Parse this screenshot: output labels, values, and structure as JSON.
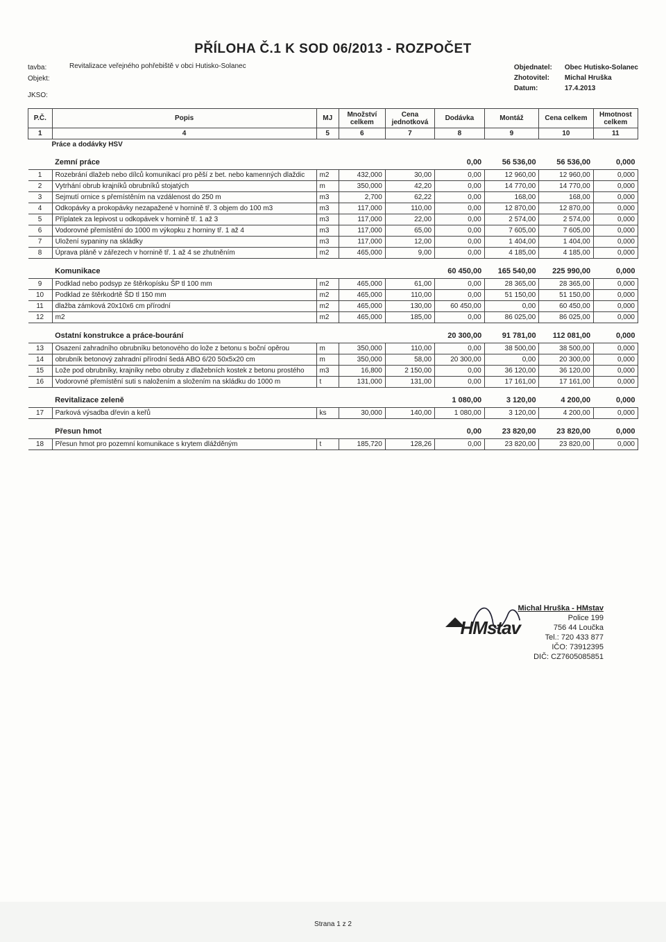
{
  "title": "PŘÍLOHA Č.1 K SOD 06/2013 - ROZPOČET",
  "labels": {
    "stavba": "tavba:",
    "objekt": "Objekt:",
    "jkso": "JKSO:"
  },
  "stavba_text": "Revitalizace veřejného pohřebiště v obci Hutisko-Solanec",
  "meta": {
    "objednatel_lbl": "Objednatel:",
    "objednatel": "Obec Hutisko-Solanec",
    "zhotovitel_lbl": "Zhotovitel:",
    "zhotovitel": "Michal Hruška",
    "datum_lbl": "Datum:",
    "datum": "17.4.2013"
  },
  "columns": {
    "pc": "P.Č.",
    "popis": "Popis",
    "mj": "MJ",
    "mnoz": "Množství celkem",
    "cj": "Cena jednotková",
    "dod": "Dodávka",
    "mont": "Montáž",
    "cena": "Cena celkem",
    "hm": "Hmotnost celkem"
  },
  "colnums": [
    "1",
    "4",
    "5",
    "6",
    "7",
    "8",
    "9",
    "10",
    "11"
  ],
  "bigsection": "Práce a dodávky HSV",
  "sections": [
    {
      "name": "Zemní práce",
      "sums": {
        "dod": "0,00",
        "mont": "56 536,00",
        "cena": "56 536,00",
        "hm": "0,000"
      },
      "rows": [
        {
          "pc": "1",
          "popis": "Rozebrání dlažeb nebo dílců komunikací pro pěší z bet. nebo kamenných dlaždic",
          "mj": "m2",
          "mnoz": "432,000",
          "cj": "30,00",
          "dod": "0,00",
          "mont": "12 960,00",
          "cena": "12 960,00",
          "hm": "0,000"
        },
        {
          "pc": "2",
          "popis": "Vytrhání obrub krajníků obrubníků stojatých",
          "mj": "m",
          "mnoz": "350,000",
          "cj": "42,20",
          "dod": "0,00",
          "mont": "14 770,00",
          "cena": "14 770,00",
          "hm": "0,000"
        },
        {
          "pc": "3",
          "popis": "Sejmutí ornice s přemístěním na vzdálenost do 250 m",
          "mj": "m3",
          "mnoz": "2,700",
          "cj": "62,22",
          "dod": "0,00",
          "mont": "168,00",
          "cena": "168,00",
          "hm": "0,000"
        },
        {
          "pc": "4",
          "popis": "Odkopávky a prokopávky nezapažené v hornině tř. 3 objem do 100 m3",
          "mj": "m3",
          "mnoz": "117,000",
          "cj": "110,00",
          "dod": "0,00",
          "mont": "12 870,00",
          "cena": "12 870,00",
          "hm": "0,000"
        },
        {
          "pc": "5",
          "popis": "Příplatek za lepivost u odkopávek v hornině tř. 1 až 3",
          "mj": "m3",
          "mnoz": "117,000",
          "cj": "22,00",
          "dod": "0,00",
          "mont": "2 574,00",
          "cena": "2 574,00",
          "hm": "0,000"
        },
        {
          "pc": "6",
          "popis": "Vodorovné přemístění do 1000 m výkopku z horniny tř. 1 až 4",
          "mj": "m3",
          "mnoz": "117,000",
          "cj": "65,00",
          "dod": "0,00",
          "mont": "7 605,00",
          "cena": "7 605,00",
          "hm": "0,000"
        },
        {
          "pc": "7",
          "popis": "Uložení sypaniny na skládky",
          "mj": "m3",
          "mnoz": "117,000",
          "cj": "12,00",
          "dod": "0,00",
          "mont": "1 404,00",
          "cena": "1 404,00",
          "hm": "0,000"
        },
        {
          "pc": "8",
          "popis": "Úprava pláně v zářezech v hornině tř. 1 až 4 se zhutněním",
          "mj": "m2",
          "mnoz": "465,000",
          "cj": "9,00",
          "dod": "0,00",
          "mont": "4 185,00",
          "cena": "4 185,00",
          "hm": "0,000"
        }
      ]
    },
    {
      "name": "Komunikace",
      "sums": {
        "dod": "60 450,00",
        "mont": "165 540,00",
        "cena": "225 990,00",
        "hm": "0,000"
      },
      "rows": [
        {
          "pc": "9",
          "popis": "Podklad nebo podsyp ze štěrkopísku ŠP tl 100 mm",
          "mj": "m2",
          "mnoz": "465,000",
          "cj": "61,00",
          "dod": "0,00",
          "mont": "28 365,00",
          "cena": "28 365,00",
          "hm": "0,000"
        },
        {
          "pc": "10",
          "popis": "Podklad ze štěrkodrtě ŠD tl 150 mm",
          "mj": "m2",
          "mnoz": "465,000",
          "cj": "110,00",
          "dod": "0,00",
          "mont": "51 150,00",
          "cena": "51 150,00",
          "hm": "0,000"
        },
        {
          "pc": "11",
          "popis": "dlažba zámková 20x10x6 cm přírodní",
          "mj": "m2",
          "mnoz": "465,000",
          "cj": "130,00",
          "dod": "60 450,00",
          "mont": "0,00",
          "cena": "60 450,00",
          "hm": "0,000"
        },
        {
          "pc": "12",
          "popis": "m2",
          "mj": "m2",
          "mnoz": "465,000",
          "cj": "185,00",
          "dod": "0,00",
          "mont": "86 025,00",
          "cena": "86 025,00",
          "hm": "0,000"
        }
      ]
    },
    {
      "name": "Ostatní konstrukce a práce-bourání",
      "sums": {
        "dod": "20 300,00",
        "mont": "91 781,00",
        "cena": "112 081,00",
        "hm": "0,000"
      },
      "rows": [
        {
          "pc": "13",
          "popis": "Osazení zahradního obrubníku betonového do lože z betonu s boční opěrou",
          "mj": "m",
          "mnoz": "350,000",
          "cj": "110,00",
          "dod": "0,00",
          "mont": "38 500,00",
          "cena": "38 500,00",
          "hm": "0,000"
        },
        {
          "pc": "14",
          "popis": "obrubník betonový zahradní přírodní šedá ABO 6/20 50x5x20 cm",
          "mj": "m",
          "mnoz": "350,000",
          "cj": "58,00",
          "dod": "20 300,00",
          "mont": "0,00",
          "cena": "20 300,00",
          "hm": "0,000"
        },
        {
          "pc": "15",
          "popis": "Lože pod obrubníky, krajníky nebo obruby z dlažebních kostek z betonu prostého",
          "mj": "m3",
          "mnoz": "16,800",
          "cj": "2 150,00",
          "dod": "0,00",
          "mont": "36 120,00",
          "cena": "36 120,00",
          "hm": "0,000"
        },
        {
          "pc": "16",
          "popis": "Vodorovné přemístění suti s naložením a složením na skládku do 1000 m",
          "mj": "t",
          "mnoz": "131,000",
          "cj": "131,00",
          "dod": "0,00",
          "mont": "17 161,00",
          "cena": "17 161,00",
          "hm": "0,000"
        }
      ]
    },
    {
      "name": "Revitalizace zeleně",
      "sums": {
        "dod": "1 080,00",
        "mont": "3 120,00",
        "cena": "4 200,00",
        "hm": "0,000"
      },
      "rows": [
        {
          "pc": "17",
          "popis": "Parková výsadba dřevin a keřů",
          "mj": "ks",
          "mnoz": "30,000",
          "cj": "140,00",
          "dod": "1 080,00",
          "mont": "3 120,00",
          "cena": "4 200,00",
          "hm": "0,000"
        }
      ]
    },
    {
      "name": "Přesun hmot",
      "sums": {
        "dod": "0,00",
        "mont": "23 820,00",
        "cena": "23 820,00",
        "hm": "0,000"
      },
      "rows": [
        {
          "pc": "18",
          "popis": "Přesun hmot pro pozemní komunikace s krytem dlážděným",
          "mj": "t",
          "mnoz": "185,720",
          "cj": "128,26",
          "dod": "0,00",
          "mont": "23 820,00",
          "cena": "23 820,00",
          "hm": "0,000"
        }
      ]
    }
  ],
  "stamp": {
    "name": "Michal Hruška - HMstav",
    "addr1": "Police 199",
    "addr2": "756 44 Loučka",
    "tel": "Tel.: 720 433 877",
    "ico": "IČO: 73912395",
    "dic": "DIČ: CZ7605085851",
    "logo": "HMstav"
  },
  "footer": "Strana 1  z 2"
}
